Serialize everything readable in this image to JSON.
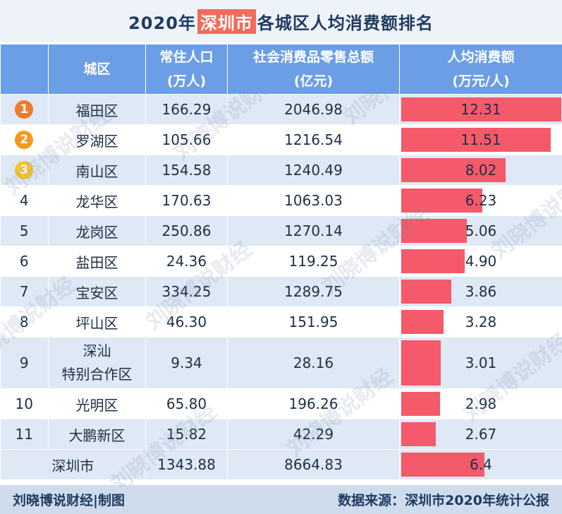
{
  "title": {
    "prefix": "2020年",
    "highlight": "深圳市",
    "suffix": "各城区人均消费额排名"
  },
  "headers": {
    "district": "城区",
    "population": "常住人口\n(万人)",
    "retail": "社会消费品零售总额\n(亿元)",
    "per_capita": "人均消费额\n(万元/人)"
  },
  "colors": {
    "header_bg": "#6c9ee6",
    "bar": "#f45a6a",
    "medal_1": "#f07b2c",
    "medal_2": "#f59a1e",
    "medal_3": "#f4c430"
  },
  "chart_data": {
    "type": "table",
    "columns": [
      "城区",
      "常住人口(万人)",
      "社会消费品零售总额(亿元)",
      "人均消费额(万元/人)"
    ],
    "rows": [
      {
        "rank": "1",
        "district": "福田区",
        "population": "166.29",
        "retail": "2046.98",
        "per_capita": "12.31",
        "value": 12.31
      },
      {
        "rank": "2",
        "district": "罗湖区",
        "population": "105.66",
        "retail": "1216.54",
        "per_capita": "11.51",
        "value": 11.51
      },
      {
        "rank": "3",
        "district": "南山区",
        "population": "154.58",
        "retail": "1240.49",
        "per_capita": "8.02",
        "value": 8.02
      },
      {
        "rank": "4",
        "district": "龙华区",
        "population": "170.63",
        "retail": "1063.03",
        "per_capita": "6.23",
        "value": 6.23
      },
      {
        "rank": "5",
        "district": "龙岗区",
        "population": "250.86",
        "retail": "1270.14",
        "per_capita": "5.06",
        "value": 5.06
      },
      {
        "rank": "6",
        "district": "盐田区",
        "population": "24.36",
        "retail": "119.25",
        "per_capita": "4.90",
        "value": 4.9
      },
      {
        "rank": "7",
        "district": "宝安区",
        "population": "334.25",
        "retail": "1289.75",
        "per_capita": "3.86",
        "value": 3.86
      },
      {
        "rank": "8",
        "district": "坪山区",
        "population": "46.30",
        "retail": "151.95",
        "per_capita": "3.28",
        "value": 3.28
      },
      {
        "rank": "9",
        "district": "深汕\n特别合作区",
        "population": "9.34",
        "retail": "28.16",
        "per_capita": "3.01",
        "value": 3.01
      },
      {
        "rank": "10",
        "district": "光明区",
        "population": "65.80",
        "retail": "196.26",
        "per_capita": "2.98",
        "value": 2.98
      },
      {
        "rank": "11",
        "district": "大鹏新区",
        "population": "15.82",
        "retail": "42.29",
        "per_capita": "2.67",
        "value": 2.67
      }
    ],
    "total": {
      "district": "深圳市",
      "population": "1343.88",
      "retail": "8664.83",
      "per_capita": "6.4",
      "value": 6.4
    },
    "bar_max": 12.31
  },
  "watermark": "刘晓博说财经",
  "footer": {
    "left": "刘晓博说财经|制图",
    "right": "数据来源：深圳市2020年统计公报"
  }
}
